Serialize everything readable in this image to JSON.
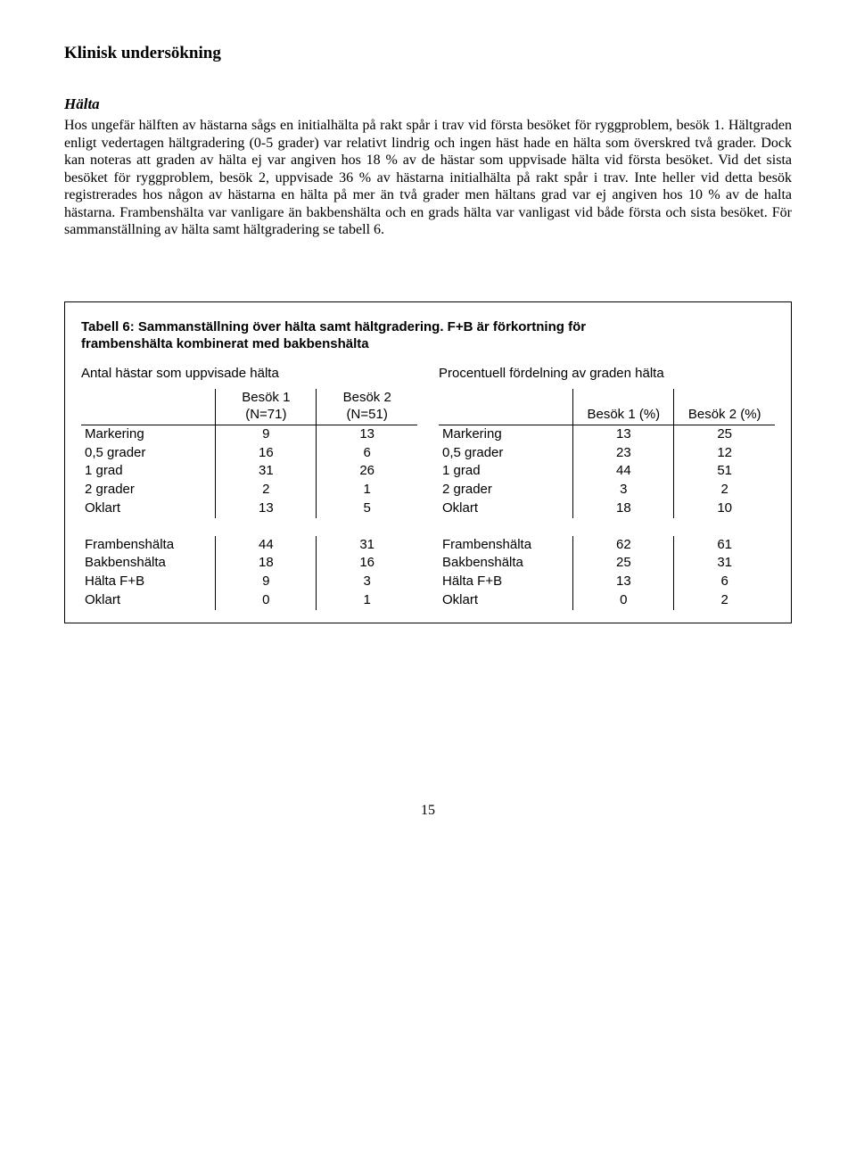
{
  "heading": "Klinisk undersökning",
  "subheading": "Hälta",
  "paragraph": "Hos ungefär hälften av hästarna sågs en initialhälta på rakt spår i trav vid första besöket för ryggproblem, besök 1. Hältgraden enligt vedertagen hältgradering (0-5 grader) var relativt lindrig och ingen häst hade en hälta som överskred två grader. Dock kan noteras att graden av hälta ej var angiven hos 18 % av de hästar som uppvisade hälta vid första besöket. Vid det sista besöket för ryggproblem, besök 2, uppvisade 36 % av hästarna initialhälta på rakt spår i trav. Inte heller vid detta besök registrerades hos någon av hästarna en hälta på mer än två grader men hältans grad var ej angiven hos 10 % av de halta hästarna. Frambenshälta var vanligare än bakbenshälta och en grads hälta var vanligast vid både första och sista besöket. För sammanställning av hälta samt hältgradering se tabell 6.",
  "table": {
    "title_line1": "Tabell 6: Sammanställning över hälta samt hältgradering. F+B är förkortning för",
    "title_line2": "frambenshälta kombinerat med bakbenshälta",
    "left_caption": "Antal hästar som uppvisade hälta",
    "right_caption": "Procentuell fördelning av graden hälta",
    "left_head_c2a": "Besök 1",
    "left_head_c2b": "(N=71)",
    "left_head_c3a": "Besök 2",
    "left_head_c3b": "(N=51)",
    "right_head_c2": "Besök 1 (%)",
    "right_head_c3": "Besök 2 (%)",
    "rows_top": [
      {
        "label": "Markering",
        "l1": "9",
        "l2": "13",
        "r1": "13",
        "r2": "25"
      },
      {
        "label": "0,5 grader",
        "l1": "16",
        "l2": "6",
        "r1": "23",
        "r2": "12"
      },
      {
        "label": "1 grad",
        "l1": "31",
        "l2": "26",
        "r1": "44",
        "r2": "51"
      },
      {
        "label": "2 grader",
        "l1": "2",
        "l2": "1",
        "r1": "3",
        "r2": "2"
      },
      {
        "label": "Oklart",
        "l1": "13",
        "l2": "5",
        "r1": "18",
        "r2": "10"
      }
    ],
    "rows_bottom": [
      {
        "label": "Frambenshälta",
        "l1": "44",
        "l2": "31",
        "r1": "62",
        "r2": "61"
      },
      {
        "label": "Bakbenshälta",
        "l1": "18",
        "l2": "16",
        "r1": "25",
        "r2": "31"
      },
      {
        "label": "Hälta F+B",
        "l1": "9",
        "l2": "3",
        "r1": "13",
        "r2": "6"
      },
      {
        "label": "Oklart",
        "l1": "0",
        "l2": "1",
        "r1": "0",
        "r2": "2"
      }
    ]
  },
  "page_number": "15"
}
